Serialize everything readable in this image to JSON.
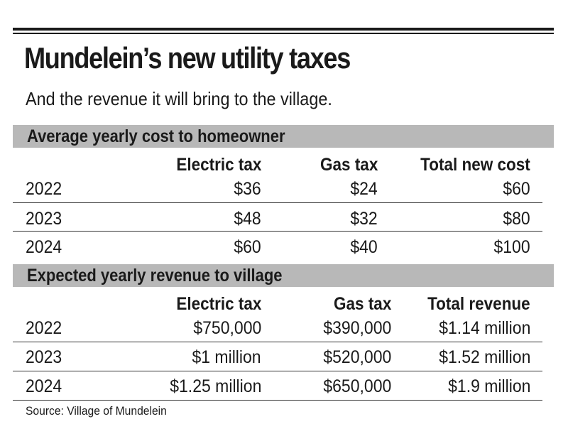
{
  "title": "Mundelein’s new utility taxes",
  "subtitle": "And the revenue it will bring to the village.",
  "sections": [
    {
      "heading": "Average yearly cost to homeowner",
      "columns": [
        "Electric tax",
        "Gas tax",
        "Total new cost"
      ],
      "rows": [
        {
          "year": "2022",
          "values": [
            "$36",
            "$24",
            "$60"
          ]
        },
        {
          "year": "2023",
          "values": [
            "$48",
            "$32",
            "$80"
          ]
        },
        {
          "year": "2024",
          "values": [
            "$60",
            "$40",
            "$100"
          ]
        }
      ]
    },
    {
      "heading": "Expected yearly revenue to village",
      "columns": [
        "Electric tax",
        "Gas tax",
        "Total revenue"
      ],
      "rows": [
        {
          "year": "2022",
          "values": [
            "$750,000",
            "$390,000",
            "$1.14 million"
          ]
        },
        {
          "year": "2023",
          "values": [
            "$1 million",
            "$520,000",
            "$1.52 million"
          ]
        },
        {
          "year": "2024",
          "values": [
            "$1.25 million",
            "$650,000",
            "$1.9 million"
          ]
        }
      ]
    }
  ],
  "source": "Source: Village of Mundelein",
  "colors": {
    "section_bar": "#b8b8b8",
    "text": "#1a1a1a"
  }
}
